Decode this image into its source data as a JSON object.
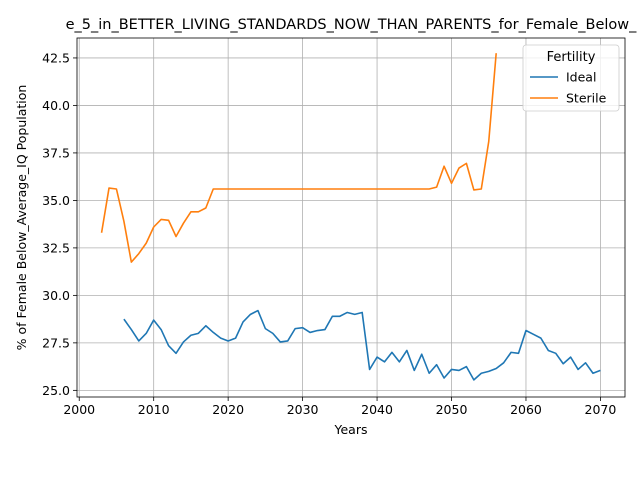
{
  "chart_data": {
    "type": "line",
    "title": "e_5_in_BETTER_LIVING_STANDARDS_NOW_THAN_PARENTS_for_Female_Below_",
    "xlabel": "Years",
    "ylabel": "% of Female Below_Average_IQ Population",
    "xlim": [
      1999.7,
      2073.3
    ],
    "ylim": [
      24.65,
      43.55
    ],
    "xticks": [
      2000,
      2010,
      2020,
      2030,
      2040,
      2050,
      2060,
      2070
    ],
    "yticks": [
      25.0,
      27.5,
      30.0,
      32.5,
      35.0,
      37.5,
      40.0,
      42.5
    ],
    "xtick_labels": [
      "2000",
      "2010",
      "2020",
      "2030",
      "2040",
      "2050",
      "2060",
      "2070"
    ],
    "ytick_labels": [
      "25.0",
      "27.5",
      "30.0",
      "32.5",
      "35.0",
      "37.5",
      "40.0",
      "42.5"
    ],
    "grid": true,
    "legend": {
      "title": "Fertility",
      "position": "top-right"
    },
    "series": [
      {
        "name": "Ideal",
        "color": "#1f77b4",
        "x": [
          2006,
          2007,
          2008,
          2009,
          2010,
          2011,
          2012,
          2013,
          2014,
          2015,
          2016,
          2017,
          2018,
          2019,
          2020,
          2021,
          2022,
          2023,
          2024,
          2025,
          2026,
          2027,
          2028,
          2029,
          2030,
          2031,
          2032,
          2033,
          2034,
          2035,
          2036,
          2037,
          2038,
          2039,
          2040,
          2041,
          2042,
          2043,
          2044,
          2045,
          2046,
          2047,
          2048,
          2049,
          2050,
          2051,
          2052,
          2053,
          2054,
          2055,
          2056,
          2057,
          2058,
          2059,
          2060,
          2061,
          2062,
          2063,
          2064,
          2065,
          2066,
          2067,
          2068,
          2069,
          2070
        ],
        "y": [
          28.75,
          28.2,
          27.6,
          28.0,
          28.7,
          28.2,
          27.35,
          26.95,
          27.55,
          27.9,
          28.0,
          28.4,
          28.05,
          27.75,
          27.6,
          27.75,
          28.6,
          29.0,
          29.2,
          28.25,
          28.0,
          27.55,
          27.6,
          28.25,
          28.3,
          28.05,
          28.15,
          28.2,
          28.9,
          28.9,
          29.1,
          29.0,
          29.1,
          26.1,
          26.75,
          26.5,
          27.0,
          26.5,
          27.1,
          26.05,
          26.9,
          25.9,
          26.35,
          25.65,
          26.1,
          26.05,
          26.25,
          25.55,
          25.9,
          26.0,
          26.15,
          26.45,
          27.0,
          26.95,
          28.15,
          27.95,
          27.75,
          27.1,
          26.95,
          26.4,
          26.75,
          26.1,
          26.45,
          25.9,
          26.05
        ]
      },
      {
        "name": "Sterile",
        "color": "#ff7f0e",
        "x": [
          2003,
          2004,
          2005,
          2006,
          2007,
          2008,
          2009,
          2010,
          2011,
          2012,
          2013,
          2014,
          2015,
          2016,
          2017,
          2018,
          2019,
          2020,
          2021,
          2022,
          2023,
          2024,
          2025,
          2026,
          2027,
          2028,
          2029,
          2030,
          2031,
          2032,
          2033,
          2034,
          2035,
          2036,
          2037,
          2038,
          2039,
          2040,
          2041,
          2042,
          2043,
          2044,
          2045,
          2046,
          2047,
          2048,
          2049,
          2050,
          2051,
          2052,
          2053,
          2054,
          2055,
          2056
        ],
        "y": [
          33.3,
          35.65,
          35.6,
          33.9,
          31.75,
          32.2,
          32.75,
          33.6,
          34.0,
          33.95,
          33.1,
          33.8,
          34.4,
          34.4,
          34.6,
          35.6,
          35.6,
          35.6,
          35.6,
          35.6,
          35.6,
          35.6,
          35.6,
          35.6,
          35.6,
          35.6,
          35.6,
          35.6,
          35.6,
          35.6,
          35.6,
          35.6,
          35.6,
          35.6,
          35.6,
          35.6,
          35.6,
          35.6,
          35.6,
          35.6,
          35.6,
          35.6,
          35.6,
          35.6,
          35.6,
          35.7,
          36.8,
          35.9,
          36.7,
          36.95,
          35.55,
          35.6,
          38.1,
          42.75
        ]
      }
    ]
  }
}
